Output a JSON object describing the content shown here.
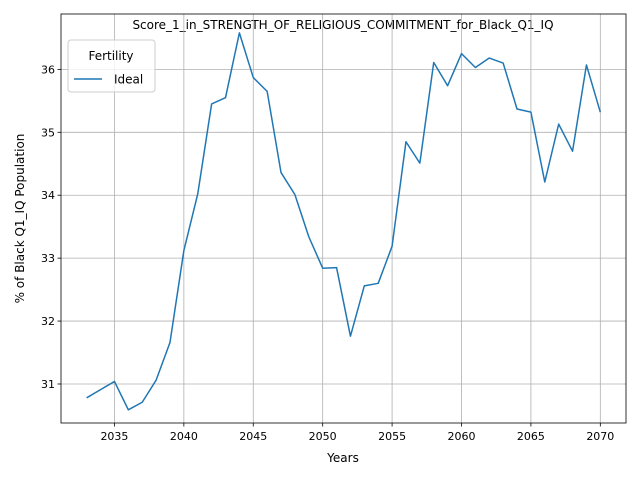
{
  "chart_data": {
    "type": "line",
    "title": "Score_1_in_STRENGTH_OF_RELIGIOUS_COMMITMENT_for_Black_Q1_IQ",
    "xlabel": "Years",
    "ylabel": "% of Black Q1_IQ Population",
    "xlim": [
      2031.15,
      2071.85
    ],
    "ylim": [
      30.38,
      36.88
    ],
    "xticks": [
      2035,
      2040,
      2045,
      2050,
      2055,
      2060,
      2065,
      2070
    ],
    "yticks": [
      31,
      32,
      33,
      34,
      35,
      36
    ],
    "grid": true,
    "legend": {
      "title": "Fertility",
      "position": "upper-left"
    },
    "series": [
      {
        "name": "Ideal",
        "color": "#1f77b4",
        "x": [
          2033,
          2034,
          2035,
          2036,
          2037,
          2038,
          2039,
          2040,
          2041,
          2042,
          2043,
          2044,
          2045,
          2046,
          2047,
          2048,
          2049,
          2050,
          2051,
          2052,
          2053,
          2054,
          2055,
          2056,
          2057,
          2058,
          2059,
          2060,
          2061,
          2062,
          2063,
          2064,
          2065,
          2066,
          2067,
          2068,
          2069,
          2070
        ],
        "y": [
          30.78,
          30.91,
          31.04,
          30.59,
          30.71,
          31.06,
          31.66,
          33.12,
          34.02,
          35.45,
          35.55,
          36.58,
          35.87,
          35.65,
          34.36,
          34.01,
          33.34,
          32.84,
          32.85,
          31.76,
          32.56,
          32.6,
          33.19,
          34.85,
          34.51,
          36.11,
          35.74,
          36.25,
          36.03,
          36.18,
          36.1,
          35.37,
          35.32,
          34.21,
          35.13,
          34.7,
          36.07,
          35.32
        ]
      }
    ]
  }
}
